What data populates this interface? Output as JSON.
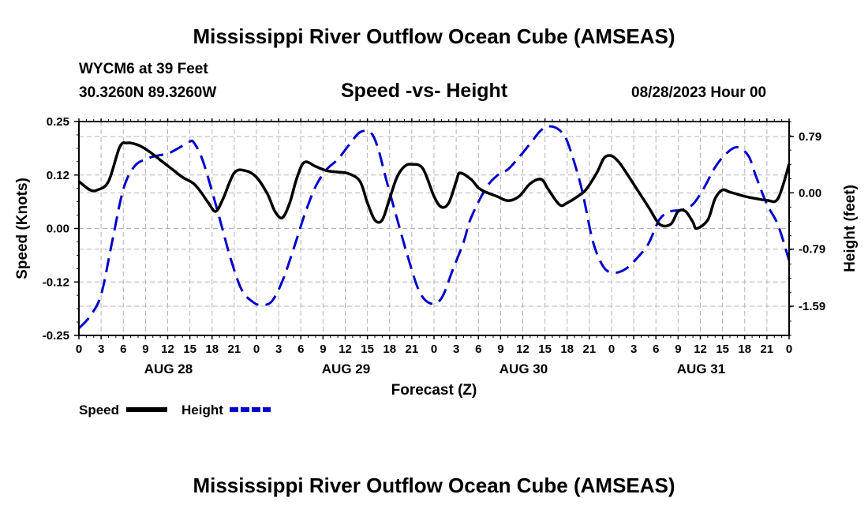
{
  "page": {
    "title": "Mississippi River Outflow Ocean Cube (AMSEAS)",
    "bottom_title": "Mississippi River Outflow Ocean Cube (AMSEAS)",
    "station": "WYCM6 at 39 Feet",
    "location": "30.3260N  89.3260W",
    "subtitle": "Speed -vs- Height",
    "date": "08/28/2023 Hour 00"
  },
  "chart_data": {
    "type": "line",
    "title": "Speed -vs- Height",
    "xlabel": "Forecast (Z)",
    "ylabel": "Speed (Knots)",
    "y2label": "Height (feet)",
    "xlim": [
      0,
      96
    ],
    "ylim": [
      -0.25,
      0.25
    ],
    "y2lim": [
      -2.0,
      1.0
    ],
    "x_tick_step_hours": 3,
    "x_tick_labels": [
      "0",
      "3",
      "6",
      "9",
      "12",
      "15",
      "18",
      "21",
      "0",
      "3",
      "6",
      "9",
      "12",
      "15",
      "18",
      "21",
      "0",
      "3",
      "6",
      "9",
      "12",
      "15",
      "18",
      "21",
      "0",
      "3",
      "6",
      "9",
      "12",
      "15",
      "18",
      "21",
      "0"
    ],
    "day_labels": [
      {
        "label": "AUG 28",
        "hour": 12
      },
      {
        "label": "AUG 29",
        "hour": 36
      },
      {
        "label": "AUG 30",
        "hour": 60
      },
      {
        "label": "AUG 31",
        "hour": 84
      }
    ],
    "y_ticks": [
      {
        "value": 0.25,
        "label": "0.25"
      },
      {
        "value": 0.125,
        "label": "0.12"
      },
      {
        "value": 0.0,
        "label": "0.00"
      },
      {
        "value": -0.125,
        "label": "-0.12"
      },
      {
        "value": -0.25,
        "label": "-0.25"
      }
    ],
    "y2_ticks": [
      {
        "value": 0.79,
        "label": "0.79"
      },
      {
        "value": 0.0,
        "label": "0.00"
      },
      {
        "value": -0.79,
        "label": "-0.79"
      },
      {
        "value": -1.59,
        "label": "-1.59"
      }
    ],
    "series": [
      {
        "name": "Speed",
        "axis": "left",
        "color": "#000000",
        "dash": "solid",
        "x": [
          0,
          1.5,
          2.5,
          4,
          5.5,
          6.5,
          8,
          9.5,
          11,
          12.5,
          14,
          15.5,
          16.5,
          17.5,
          18.5,
          19.5,
          21,
          22.5,
          24,
          25.5,
          26.5,
          27.5,
          28.5,
          29.5,
          30.5,
          32,
          33.5,
          35,
          36.5,
          38,
          39,
          40,
          41,
          42,
          43,
          44,
          45,
          46.5,
          48,
          49,
          50,
          51,
          51.5,
          53,
          54,
          55,
          56.5,
          58,
          59.5,
          61,
          62.5,
          63.5,
          65,
          66,
          67,
          68.5,
          70,
          71,
          72,
          73,
          74,
          75.5,
          77,
          78.5,
          80,
          81,
          82,
          83,
          83.5,
          85,
          86,
          87,
          88,
          89,
          90,
          91.5,
          93,
          94.5,
          96
        ],
        "y": [
          0.11,
          0.09,
          0.09,
          0.11,
          0.19,
          0.2,
          0.195,
          0.18,
          0.16,
          0.14,
          0.12,
          0.105,
          0.085,
          0.06,
          0.04,
          0.07,
          0.13,
          0.135,
          0.12,
          0.08,
          0.04,
          0.025,
          0.06,
          0.12,
          0.155,
          0.145,
          0.135,
          0.132,
          0.128,
          0.11,
          0.06,
          0.02,
          0.02,
          0.07,
          0.12,
          0.145,
          0.15,
          0.14,
          0.075,
          0.05,
          0.06,
          0.11,
          0.13,
          0.115,
          0.095,
          0.085,
          0.075,
          0.065,
          0.075,
          0.105,
          0.115,
          0.09,
          0.055,
          0.06,
          0.07,
          0.09,
          0.13,
          0.165,
          0.17,
          0.155,
          0.13,
          0.09,
          0.05,
          0.01,
          0.01,
          0.04,
          0.04,
          0.015,
          0.0,
          0.02,
          0.07,
          0.09,
          0.085,
          0.08,
          0.075,
          0.07,
          0.066,
          0.07,
          0.15
        ]
      },
      {
        "name": "Height",
        "axis": "right",
        "color": "#0000cc",
        "dash": "dashed",
        "x": [
          0,
          1.5,
          3,
          4.5,
          6,
          7.5,
          9,
          10.5,
          12,
          13.5,
          15,
          15.5,
          16.5,
          17.5,
          19,
          20.5,
          22,
          23.5,
          24.5,
          26,
          27.5,
          29,
          30.5,
          32,
          33.5,
          35,
          36.5,
          38,
          39.5,
          40.5,
          41.5,
          43,
          44.5,
          46,
          47.5,
          49,
          50.5,
          52,
          53,
          55,
          56.5,
          58,
          59.5,
          61,
          62.5,
          64,
          65.5,
          66.5,
          68,
          69.5,
          71,
          72.5,
          74,
          75.5,
          77,
          78.5,
          80,
          81.5,
          83,
          84.5,
          86,
          87.5,
          89,
          90.5,
          91.5,
          93,
          94.5,
          96
        ],
        "y": [
          -1.9,
          -1.73,
          -1.43,
          -0.68,
          0.05,
          0.37,
          0.47,
          0.52,
          0.55,
          0.63,
          0.72,
          0.71,
          0.52,
          0.2,
          -0.35,
          -0.92,
          -1.36,
          -1.53,
          -1.57,
          -1.53,
          -1.24,
          -0.79,
          -0.31,
          0.09,
          0.33,
          0.47,
          0.67,
          0.85,
          0.84,
          0.6,
          0.2,
          -0.36,
          -0.91,
          -1.38,
          -1.55,
          -1.48,
          -1.09,
          -0.69,
          -0.35,
          0.06,
          0.24,
          0.33,
          0.5,
          0.69,
          0.88,
          0.93,
          0.82,
          0.58,
          0.04,
          -0.69,
          -1.05,
          -1.12,
          -1.06,
          -0.91,
          -0.71,
          -0.37,
          -0.26,
          -0.24,
          -0.16,
          0.07,
          0.36,
          0.55,
          0.64,
          0.52,
          0.24,
          -0.16,
          -0.45,
          -0.95
        ]
      }
    ],
    "legend": [
      {
        "label": "Speed",
        "color": "#000000",
        "dash": "solid"
      },
      {
        "label": "Height",
        "color": "#0000cc",
        "dash": "dashed"
      }
    ],
    "legend_position": "bottom-left",
    "grid": true
  }
}
